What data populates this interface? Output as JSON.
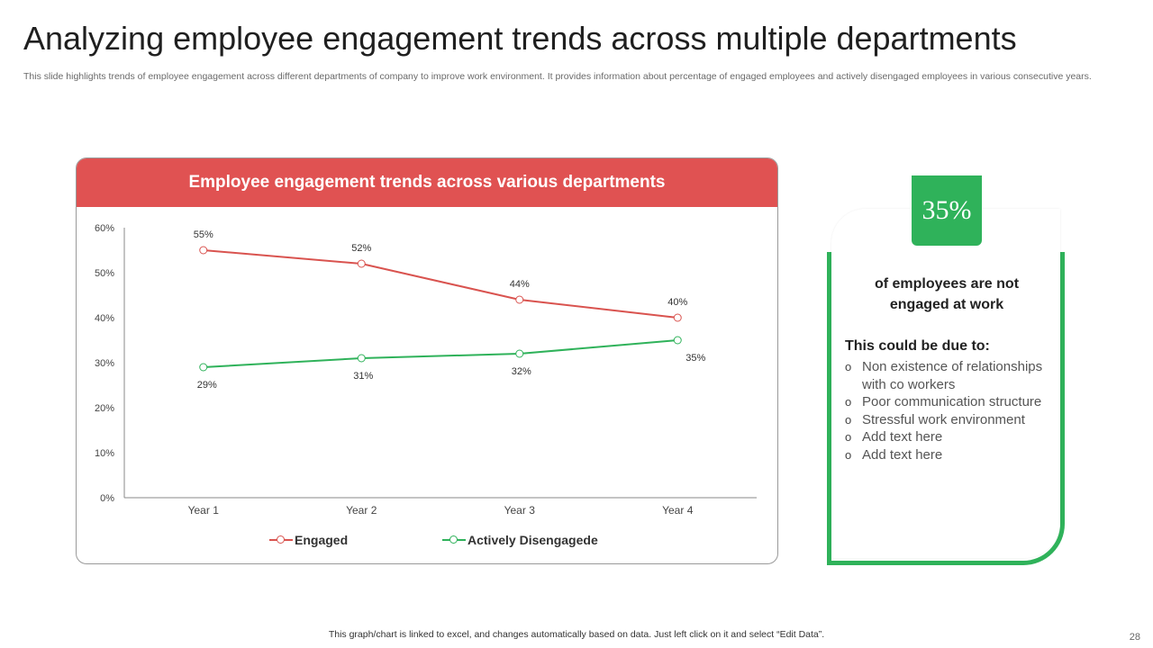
{
  "slide": {
    "title": "Analyzing employee engagement trends across multiple departments",
    "subtitle": "This slide highlights trends of employee engagement across different departments of company to improve work environment. It provides information about percentage of engaged employees and actively disengaged employees in various consecutive years.",
    "footer_note": "This graph/chart is linked to excel, and changes automatically based on data. Just left click on it and select “Edit Data”.",
    "page_number": "28"
  },
  "colors": {
    "engaged": "#d9534f",
    "disengaged": "#2fb25a",
    "header_red": "#e05252",
    "accent_green": "#2fb25a"
  },
  "chart_data": {
    "type": "line",
    "title": "Employee engagement trends across various departments",
    "categories": [
      "Year 1",
      "Year 2",
      "Year 3",
      "Year 4"
    ],
    "series": [
      {
        "name": "Engaged",
        "values": [
          55,
          52,
          44,
          40
        ],
        "labels": [
          "55%",
          "52%",
          "44%",
          "40%"
        ]
      },
      {
        "name": "Actively Disengagede",
        "values": [
          29,
          31,
          32,
          35
        ],
        "labels": [
          "29%",
          "31%",
          "32%",
          "35%"
        ]
      }
    ],
    "yticks": [
      "0%",
      "10%",
      "20%",
      "30%",
      "40%",
      "50%",
      "60%"
    ],
    "ylim": [
      0,
      60
    ],
    "xlabel": "",
    "ylabel": "",
    "legend": "bottom"
  },
  "stat": {
    "value": "35%",
    "headline": "of employees are not engaged at work",
    "causes_title": "This could be due to:",
    "causes": [
      "Non existence of relationships with co workers",
      "Poor communication structure",
      "Stressful work environment",
      "Add text here",
      "Add text here"
    ]
  }
}
